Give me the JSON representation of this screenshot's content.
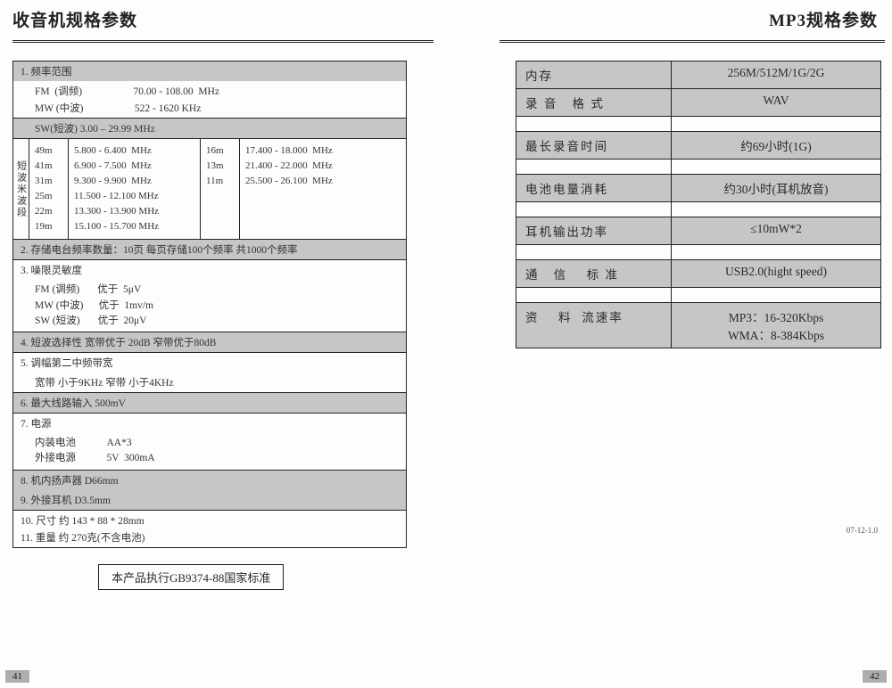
{
  "left": {
    "title": "收音机规格参数",
    "sec1_header": "1. 频率范围",
    "fm_line": "FM  (调频)                    70.00 - 108.00  MHz",
    "mw_line": "MW (中波)                    522 - 1620 KHz",
    "sw_header": "SW(短波)   3.00 – 29.99 MHz",
    "sw_label": "短波米波段",
    "sw_col1": "49m\n41m\n31m\n25m\n22m\n19m",
    "sw_col2": "5.800 - 6.400  MHz\n6.900 - 7.500  MHz\n9.300 - 9.900  MHz\n11.500 - 12.100 MHz\n13.300 - 13.900 MHz\n15.100 - 15.700 MHz",
    "sw_col3": "16m\n13m\n11m",
    "sw_col4": "17.400 - 18.000  MHz\n21.400 - 22.000  MHz\n25.500 - 26.100  MHz",
    "sec2": "2. 存储电台频率数量：10页  每页存储100个频率  共1000个频率",
    "sec3_header": "3. 噪限灵敏度",
    "sec3_body": "FM (调频)       优于  5μV\nMW (中波)      优于  1mv/m\nSW (短波)       优于  20μV",
    "sec4": "4. 短波选择性       宽带优于  20dB      窄带优于80dB",
    "sec5_header": "5. 调幅第二中频带宽",
    "sec5_body": "宽带  小于9KHz          窄带   小于4KHz",
    "sec6": "6. 最大线路输入            500mV",
    "sec7_header": "7. 电源",
    "sec7_body": "内装电池            AA*3\n外接电源            5V  300mA",
    "sec8": "8. 机内扬声器           D66mm",
    "sec9": "9. 外接耳机              D3.5mm",
    "sec10": "10. 尺寸            约    143 * 88 * 28mm",
    "sec11": "11. 重量            约     270克(不含电池)",
    "standard": "本产品执行GB9374-88国家标准",
    "pagenum": "41"
  },
  "right": {
    "title": "MP3规格参数",
    "rows": [
      {
        "label": "内存",
        "value": "256M/512M/1G/2G"
      },
      {
        "label": "录 音   格 式",
        "value": "WAV"
      },
      {
        "blank": true
      },
      {
        "label": "最长录音时间",
        "value": "约69小时(1G)"
      },
      {
        "blank": true
      },
      {
        "label": "电池电量消耗",
        "value": "约30小时(耳机放音)"
      },
      {
        "blank": true
      },
      {
        "label": "耳机输出功率",
        "value": "≤10mW*2"
      },
      {
        "blank": true
      },
      {
        "label": "通   信    标 准",
        "value": "USB2.0(hight speed)"
      },
      {
        "blank": true
      },
      {
        "label": "资    料  流速率",
        "value": "MP3：16-320Kbps\nWMA：8-384Kbps"
      }
    ],
    "version": "07-12-1.0",
    "pagenum": "42"
  }
}
